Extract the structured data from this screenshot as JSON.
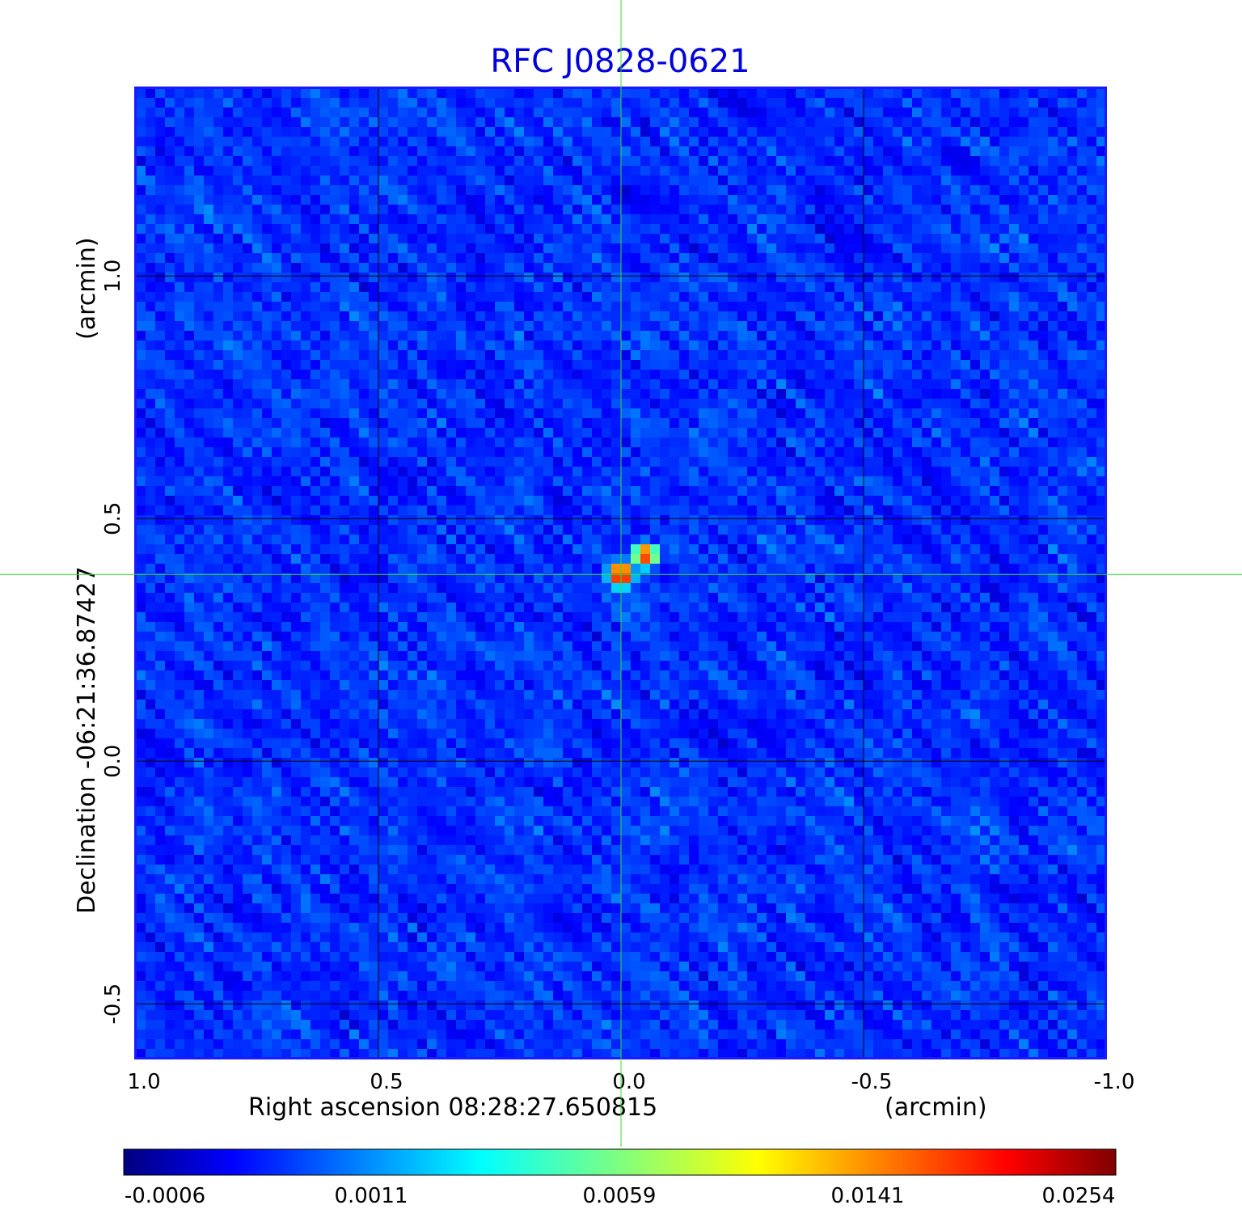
{
  "chart_data": {
    "type": "heatmap",
    "title": "RFC J0828-0621",
    "xlabel": "Right ascension  08:28:27.650815",
    "xunit": "(arcmin)",
    "ylabel": "Declination  -06:21:36.87427",
    "yunit": "(arcmin)",
    "xlim": [
      1.0,
      -1.0
    ],
    "ylim": [
      -0.613,
      1.387
    ],
    "x_ticks": [
      "1.0",
      "0.5",
      "0.0",
      "-0.5",
      "-1.0"
    ],
    "x_tick_values": [
      1.0,
      0.5,
      0.0,
      -0.5,
      -1.0
    ],
    "y_ticks": [
      "-0.5",
      "0.0",
      "0.5",
      "1.0"
    ],
    "y_tick_values": [
      -0.5,
      0.0,
      0.5,
      1.0
    ],
    "grid": true,
    "crosshair": {
      "x": 0.0,
      "y": 0.385
    },
    "colorbar": {
      "ticks": [
        "-0.0006",
        "0.0011",
        "0.0059",
        "0.0141",
        "0.0254"
      ],
      "min": -0.0006,
      "max": 0.0254,
      "colormap": "jet"
    },
    "components": [
      {
        "x": 0.0,
        "y": 0.385,
        "peak": 0.0254
      },
      {
        "x": -0.05,
        "y": 0.425,
        "peak": 0.022
      },
      {
        "x": 0.15,
        "y": 0.4,
        "peak": 0.002
      }
    ]
  },
  "colors": {
    "title": "#0000dd",
    "crosshair": "#33dd33",
    "frame": "#1a1aff",
    "grid": "#000000"
  }
}
